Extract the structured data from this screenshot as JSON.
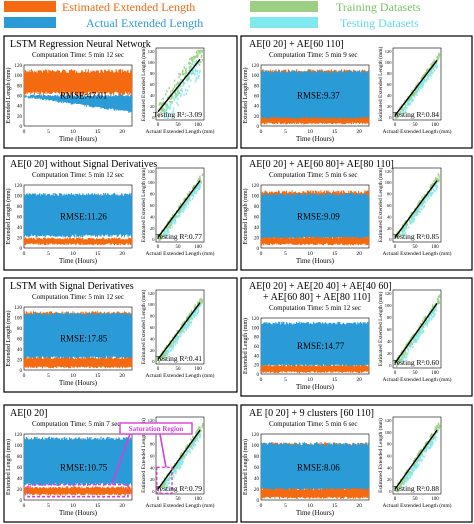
{
  "legend": {
    "items": [
      {
        "label": "Estimated Extended Length",
        "color": "#f36a10"
      },
      {
        "label": "Training Datasets",
        "color": "#9ccf84"
      },
      {
        "label": "Actual Extended Length",
        "color": "#2a9bd6"
      },
      {
        "label": "Testing Datasets",
        "color": "#7fe9f0"
      }
    ]
  },
  "colors": {
    "estimated": "#f36a10",
    "actual": "#2a9bd6",
    "training": "#8fcf78",
    "testing": "#7fe9f0",
    "fit": "#000000",
    "highlight": "#d63fd6"
  },
  "chart_data": [
    {
      "type": "area",
      "title": "LSTM Regression Neural Network",
      "subtitle": "Computation Time: 5 min 12 sec",
      "xlabel": "Time (Hours)",
      "ylabel": "Extended Length (mm)",
      "xlim": [
        0,
        22
      ],
      "ylim": [
        0,
        120
      ],
      "xticks": [
        "0",
        "5",
        "10",
        "15",
        "20"
      ],
      "yticks": [
        "0",
        "20",
        "40",
        "60",
        "80",
        "100",
        "120"
      ],
      "metric": "RMSE:47.01",
      "scatter": {
        "type": "scatter",
        "xlabel": "Actuatl Extended Length (mm)",
        "ylabel": "Estimated Extended Length (mm)",
        "xticks": [
          "0",
          "50",
          "100"
        ],
        "yticks": [
          "0",
          "20",
          "40",
          "60",
          "80",
          "100",
          "120"
        ],
        "fit_slope": 0.9,
        "fit_intercept": 10,
        "r2": "Testing R²:-3.09"
      }
    },
    {
      "type": "area",
      "title": "AE[0 20] + AE[60 110]",
      "subtitle": "Computation Time: 5 min 9 sec",
      "xlabel": "Time (Hours)",
      "ylabel": "Extended Length (mm)",
      "xlim": [
        0,
        22
      ],
      "ylim": [
        0,
        120
      ],
      "xticks": [
        "0",
        "5",
        "10",
        "15",
        "20"
      ],
      "yticks": [
        "0",
        "20",
        "40",
        "60",
        "80",
        "100",
        "120"
      ],
      "metric": "RMSE:9.37",
      "scatter": {
        "type": "scatter",
        "xlabel": "Actuatl Extended Length (mm)",
        "ylabel": "Estimated Extended Length (mm)",
        "xticks": [
          "0",
          "50",
          "100"
        ],
        "yticks": [
          "0",
          "20",
          "40",
          "60",
          "80",
          "100",
          "120"
        ],
        "fit_slope": 0.95,
        "fit_intercept": 3,
        "r2": "Testing R²:0.84"
      }
    },
    {
      "type": "area",
      "title": "AE[0 20] without Signal Derivatives",
      "subtitle": "Computation Time: 5 min 12 sec",
      "xlabel": "Time (Hours)",
      "ylabel": "Extended Length (mm)",
      "xlim": [
        0,
        22
      ],
      "ylim": [
        0,
        120
      ],
      "xticks": [
        "0",
        "5",
        "10",
        "15",
        "20"
      ],
      "yticks": [
        "0",
        "20",
        "40",
        "60",
        "80",
        "100",
        "120"
      ],
      "metric": "RMSE:11.26",
      "scatter": {
        "type": "scatter",
        "xlabel": "Actuatl Extended Length (mm)",
        "ylabel": "Estimated Extended Length (mm)",
        "xticks": [
          "0",
          "50",
          "100"
        ],
        "yticks": [
          "0",
          "20",
          "40",
          "60",
          "80",
          "100",
          "120"
        ],
        "fit_slope": 0.95,
        "fit_intercept": 3,
        "r2": "Testing R²:0.77"
      }
    },
    {
      "type": "area",
      "title": "AE[0 20] + AE[60 80]+ AE[80 110]",
      "subtitle": "Computation Time: 5 min 6 sec",
      "xlabel": "Time (Hours)",
      "ylabel": "Extended Length (mm)",
      "xlim": [
        0,
        22
      ],
      "ylim": [
        0,
        120
      ],
      "xticks": [
        "0",
        "5",
        "10",
        "15",
        "20"
      ],
      "yticks": [
        "0",
        "20",
        "40",
        "60",
        "80",
        "100",
        "120"
      ],
      "metric": "RMSE:9.09",
      "scatter": {
        "type": "scatter",
        "xlabel": "Actuatl Extended Length (mm)",
        "ylabel": "Estimated Extended Length (mm)",
        "xticks": [
          "0",
          "50",
          "100"
        ],
        "yticks": [
          "0",
          "20",
          "40",
          "60",
          "80",
          "100",
          "120"
        ],
        "fit_slope": 0.95,
        "fit_intercept": 3,
        "r2": "Testing R²:0.85"
      }
    },
    {
      "type": "area",
      "title": "LSTM  with Signal Derivatives",
      "subtitle": "Computation Time: 5 min 12 sec",
      "xlabel": "Time (Hours)",
      "ylabel": "Extended Length (mm)",
      "xlim": [
        0,
        22
      ],
      "ylim": [
        0,
        120
      ],
      "xticks": [
        "0",
        "5",
        "10",
        "15",
        "20"
      ],
      "yticks": [
        "0",
        "20",
        "40",
        "60",
        "80",
        "100",
        "120"
      ],
      "metric": "RMSE:17.85",
      "scatter": {
        "type": "scatter",
        "xlabel": "Actuatl Extended Length (mm)",
        "ylabel": "Estimated Extended Length (mm)",
        "xticks": [
          "0",
          "50",
          "100"
        ],
        "yticks": [
          "0",
          "20",
          "40",
          "60",
          "80",
          "100",
          "120"
        ],
        "fit_slope": 0.95,
        "fit_intercept": 3,
        "r2": "Testing R²:0.41"
      }
    },
    {
      "type": "area",
      "title": "AE[0 20] + AE[20 40] + AE[40 60]",
      "title2": "+ AE[60 80] + AE[80 110]",
      "subtitle": "Computation Time: 5 min 12 sec",
      "xlabel": "Time (Hours)",
      "ylabel": "Extended Length (mm)",
      "xlim": [
        0,
        22
      ],
      "ylim": [
        0,
        120
      ],
      "xticks": [
        "0",
        "5",
        "10",
        "15",
        "20"
      ],
      "yticks": [
        "0",
        "20",
        "40",
        "60",
        "80",
        "100",
        "120"
      ],
      "metric": "RMSE:14.77",
      "scatter": {
        "type": "scatter",
        "xlabel": "Actuatl Extended Length (mm)",
        "ylabel": "Estimated Extended Length (mm)",
        "xticks": [
          "0",
          "50",
          "100"
        ],
        "yticks": [
          "0",
          "20",
          "40",
          "60",
          "80",
          "100",
          "120"
        ],
        "fit_slope": 0.95,
        "fit_intercept": 3,
        "r2": "Testing R²:0.60"
      }
    },
    {
      "type": "area",
      "title": "AE[0 20]",
      "subtitle": "Computation Time: 5 min 7 sec",
      "xlabel": "Time (Hours)",
      "ylabel": "Extended Length (mm)",
      "xlim": [
        0,
        22
      ],
      "ylim": [
        0,
        120
      ],
      "xticks": [
        "0",
        "5",
        "10",
        "15",
        "20"
      ],
      "yticks": [
        "0",
        "20",
        "40",
        "60",
        "80",
        "100",
        "120"
      ],
      "metric": "RMSE:10.75",
      "annotation": "Saturation Region",
      "scatter": {
        "type": "scatter",
        "xlabel": "Actuatl Extended Length (mm)",
        "ylabel": "Estimated Extended Length (mm)",
        "xticks": [
          "0",
          "50",
          "100"
        ],
        "yticks": [
          "0",
          "20",
          "40",
          "60",
          "80",
          "100",
          "120"
        ],
        "fit_slope": 0.95,
        "fit_intercept": 3,
        "r2": "Testing R²:0.79"
      }
    },
    {
      "type": "area",
      "title": "AE [0 20] + 9 clusters [60 110]",
      "subtitle": "Computation Time: 5 min 6 sec",
      "xlabel": "Time (Hours)",
      "ylabel": "Extended Length (mm)",
      "xlim": [
        0,
        22
      ],
      "ylim": [
        0,
        120
      ],
      "xticks": [
        "0",
        "5",
        "10",
        "15",
        "20"
      ],
      "yticks": [
        "0",
        "20",
        "40",
        "60",
        "80",
        "100",
        "120"
      ],
      "metric": "RMSE:8.06",
      "scatter": {
        "type": "scatter",
        "xlabel": "Actuatl Extended Length (mm)",
        "ylabel": "Estimated Extended Length (mm)",
        "xticks": [
          "0",
          "50",
          "100"
        ],
        "yticks": [
          "0",
          "20",
          "40",
          "60",
          "80",
          "100",
          "120"
        ],
        "fit_slope": 0.95,
        "fit_intercept": 3,
        "r2": "Testing R²:0.88"
      }
    }
  ]
}
